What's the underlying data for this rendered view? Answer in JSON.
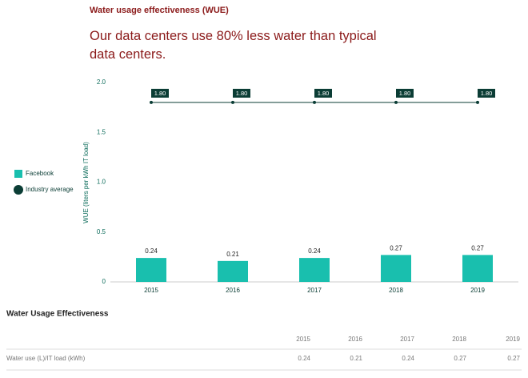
{
  "chart_data": {
    "type": "bar",
    "title": "Water usage effectiveness (WUE)",
    "subtitle": "Our data centers use 80% less water than typical data centers.",
    "y_label": "WUE (liters per kWh IT load)",
    "categories": [
      "2015",
      "2016",
      "2017",
      "2018",
      "2019"
    ],
    "series": [
      {
        "name": "Facebook",
        "type": "bar",
        "color": "#19bfae",
        "values": [
          0.24,
          0.21,
          0.24,
          0.27,
          0.27
        ]
      },
      {
        "name": "Industry average",
        "type": "line",
        "color": "#0b3d35",
        "values": [
          1.8,
          1.8,
          1.8,
          1.8,
          1.8
        ],
        "value_labels": [
          "1.80",
          "1.80",
          "1.80",
          "1.80",
          "1.80"
        ]
      }
    ],
    "ylim": [
      0,
      2
    ],
    "yticks": [
      0,
      0.5,
      {
        "value": 1,
        "label": "1.0"
      },
      1.5,
      {
        "value": 2,
        "label": "2.0"
      }
    ],
    "legend": "left"
  },
  "table": {
    "title": "Water Usage Effectiveness",
    "columns": [
      "2015",
      "2016",
      "2017",
      "2018",
      "2019"
    ],
    "rows": [
      [
        "Water use (L)/IT load (kWh)",
        0.24,
        0.21,
        0.24,
        0.27,
        0.27
      ]
    ]
  }
}
